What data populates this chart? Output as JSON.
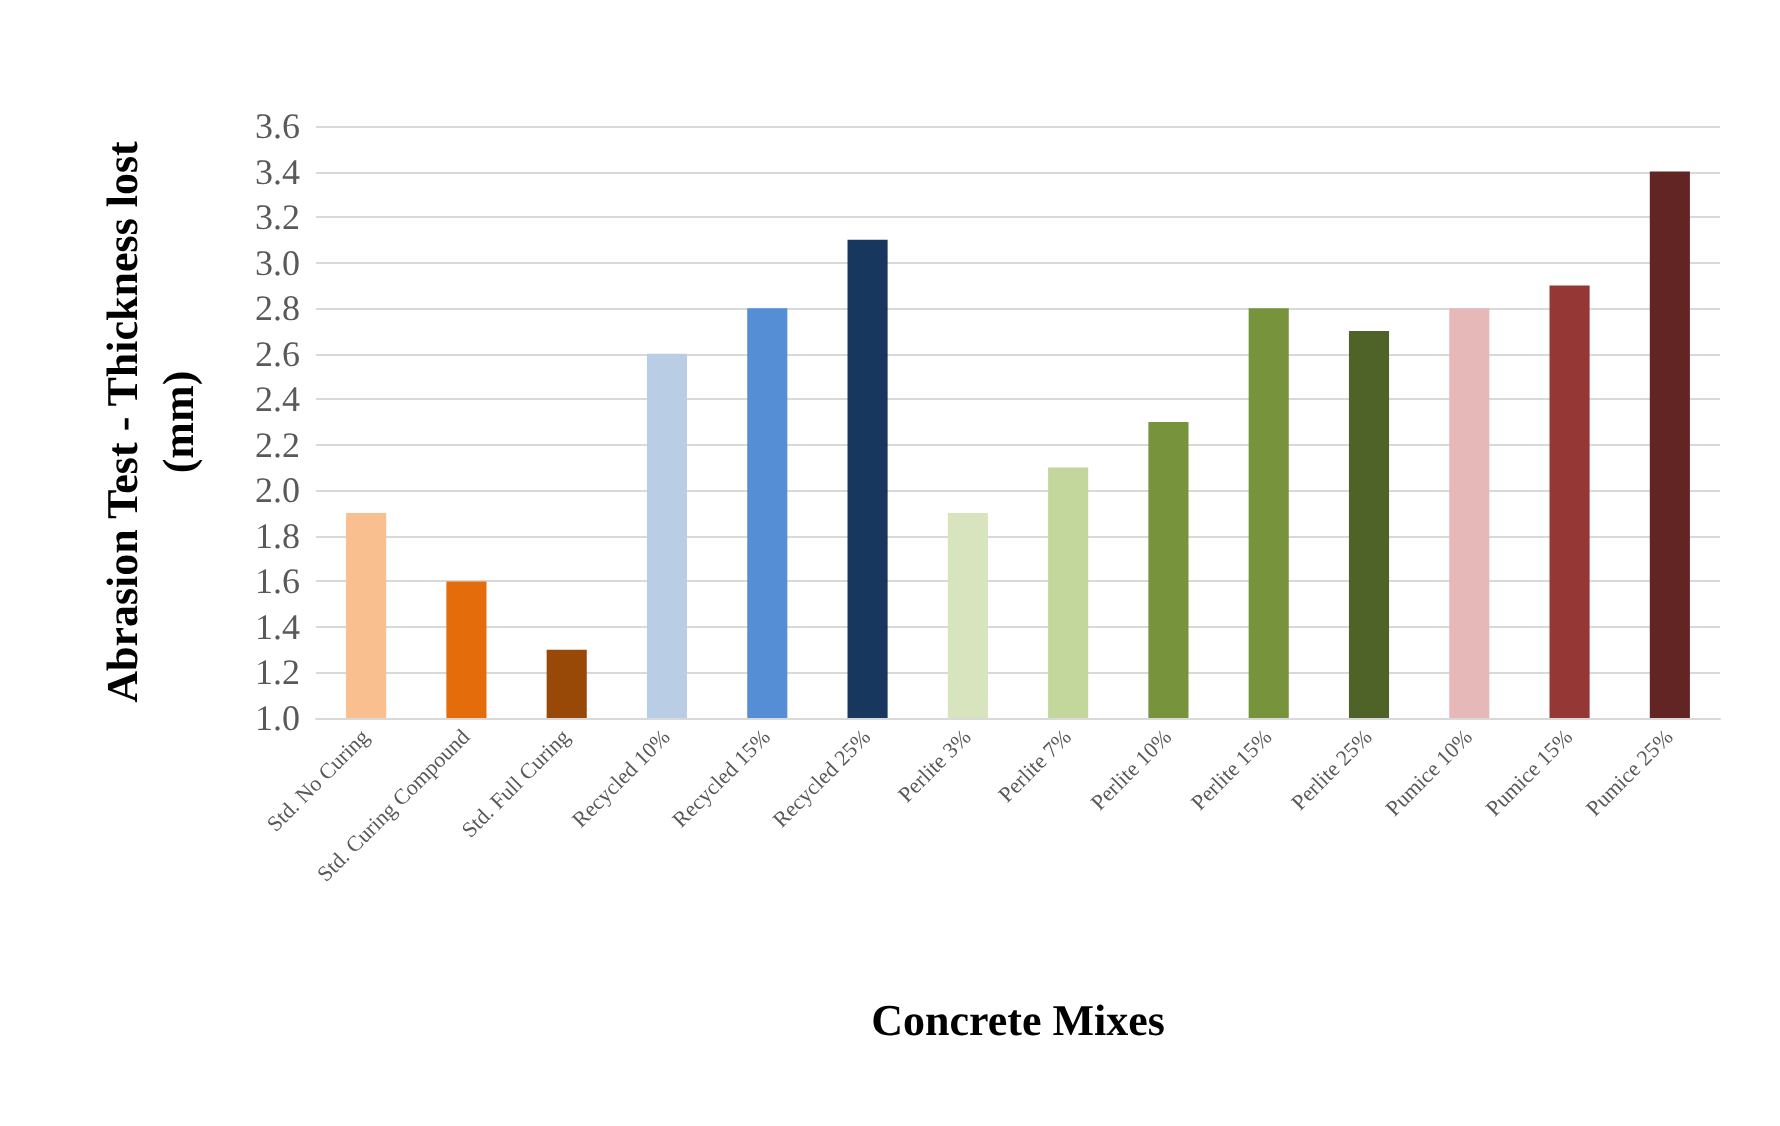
{
  "chart_data": {
    "type": "bar",
    "xlabel": "Concrete Mixes",
    "ylabel": "Abrasion Test - Thickness lost (mm)",
    "categories": [
      "Std. No Curing",
      "Std. Curing Compound",
      "Std. Full Curing",
      "Recycled 10%",
      "Recycled 15%",
      "Recycled 25%",
      "Perlite 3%",
      "Perlite 7%",
      "Perlite 10%",
      "Perlite 15%",
      "Perlite 25%",
      "Pumice 10%",
      "Pumice 15%",
      "Pumice 25%"
    ],
    "values": [
      1.9,
      1.6,
      1.3,
      2.6,
      2.8,
      3.1,
      1.9,
      2.1,
      2.3,
      2.8,
      2.7,
      2.8,
      2.9,
      3.4
    ],
    "colors": [
      "#f9bf8f",
      "#e46c0a",
      "#984807",
      "#b9cde5",
      "#558ed5",
      "#17375e",
      "#d7e4bd",
      "#c3d69b",
      "#77933c",
      "#77933c",
      "#4f6228",
      "#e6b9b8",
      "#953735",
      "#632523"
    ],
    "ylim": [
      1.0,
      3.6
    ],
    "yticks": [
      {
        "value": 1.0,
        "label": "1.0"
      },
      {
        "value": 1.2,
        "label": "1.2"
      },
      {
        "value": 1.4,
        "label": "1.4"
      },
      {
        "value": 1.6,
        "label": "1.6"
      },
      {
        "value": 1.8,
        "label": "1.8"
      },
      {
        "value": 2.0,
        "label": "2.0"
      },
      {
        "value": 2.2,
        "label": "2.2"
      },
      {
        "value": 2.4,
        "label": "2.4"
      },
      {
        "value": 2.6,
        "label": "2.6"
      },
      {
        "value": 2.8,
        "label": "2.8"
      },
      {
        "value": 3.0,
        "label": "3.0"
      },
      {
        "value": 3.2,
        "label": "3.2"
      },
      {
        "value": 3.4,
        "label": "3.4"
      },
      {
        "value": 3.6,
        "label": "3.6"
      }
    ],
    "grid": true
  }
}
